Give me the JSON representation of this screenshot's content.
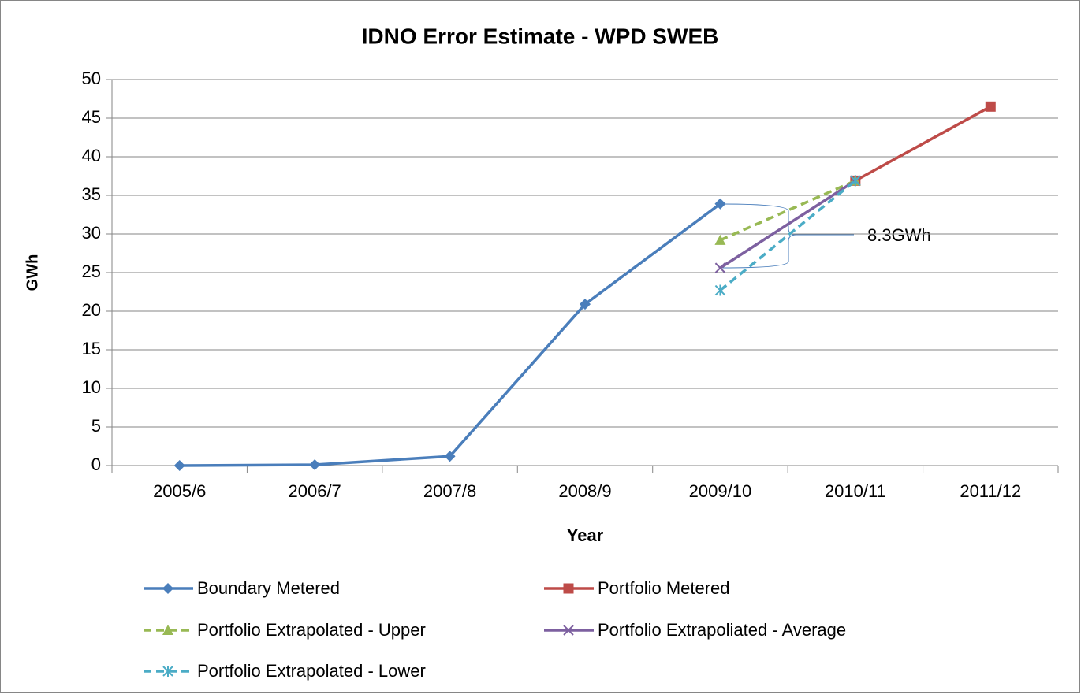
{
  "chart_data": {
    "type": "line",
    "title": "IDNO Error Estimate - WPD SWEB",
    "y_label": "GWh",
    "x_label": "Year",
    "annotation": "8.3GWh",
    "categories": [
      "2005/6",
      "2006/7",
      "2007/8",
      "2008/9",
      "2009/10",
      "2010/11",
      "2011/12"
    ],
    "series": [
      {
        "name": "Boundary Metered",
        "color": "#4a7ebb",
        "marker": "diamond",
        "dashed": false,
        "values": [
          0,
          0.1,
          1.2,
          20.9,
          33.9,
          null,
          null
        ]
      },
      {
        "name": "Portfolio Metered",
        "color": "#be4b48",
        "marker": "square",
        "dashed": false,
        "values": [
          null,
          null,
          null,
          null,
          null,
          36.9,
          46.5
        ]
      },
      {
        "name": "Portfolio Extrapolated - Upper",
        "color": "#98b954",
        "marker": "triangle",
        "dashed": true,
        "values": [
          null,
          null,
          null,
          null,
          29.2,
          36.9,
          null
        ]
      },
      {
        "name": "Portfolio Extrapoliated - Average",
        "color": "#7d60a0",
        "marker": "x",
        "dashed": false,
        "values": [
          null,
          null,
          null,
          null,
          25.6,
          36.9,
          null
        ]
      },
      {
        "name": "Portfolio Extrapolated - Lower",
        "color": "#4bacc6",
        "marker": "star",
        "dashed": true,
        "values": [
          null,
          null,
          null,
          null,
          22.7,
          36.9,
          null
        ]
      }
    ],
    "ylim": [
      0,
      50
    ],
    "yticks": [
      0,
      5,
      10,
      15,
      20,
      25,
      30,
      35,
      40,
      45,
      50
    ],
    "grid": true,
    "legend": "bottom"
  }
}
